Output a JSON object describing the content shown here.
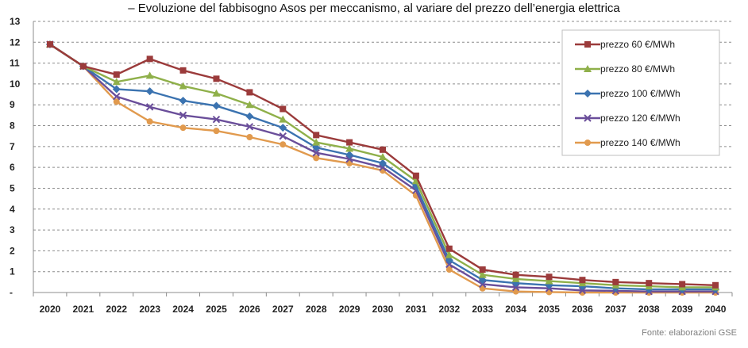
{
  "chart_data": {
    "type": "line",
    "title": "– Evoluzione del fabbisogno Asos per meccanismo, al variare del prezzo dell’energia elettrica",
    "xlabel": "",
    "ylabel": "",
    "x": [
      "2020",
      "2021",
      "2022",
      "2023",
      "2024",
      "2025",
      "2026",
      "2027",
      "2028",
      "2029",
      "2030",
      "2031",
      "2032",
      "2033",
      "2034",
      "2035",
      "2036",
      "2037",
      "2038",
      "2039",
      "2040"
    ],
    "y_ticks": [
      "-",
      "1",
      "2",
      "3",
      "4",
      "5",
      "6",
      "7",
      "8",
      "9",
      "10",
      "11",
      "12",
      "13"
    ],
    "ylim": [
      0,
      13
    ],
    "grid": "horizontal-dashed",
    "legend_position": "top-right",
    "series": [
      {
        "name": "prezzo 60 €/MWh",
        "color": "#9b3b3b",
        "marker": "square",
        "values": [
          11.9,
          10.85,
          10.45,
          11.2,
          10.65,
          10.25,
          9.6,
          8.8,
          7.55,
          7.2,
          6.85,
          5.6,
          2.1,
          1.1,
          0.85,
          0.75,
          0.6,
          0.5,
          0.45,
          0.4,
          0.35
        ]
      },
      {
        "name": "prezzo 80 €/MWh",
        "color": "#8fb04a",
        "marker": "triangle",
        "values": [
          11.9,
          10.85,
          10.1,
          10.4,
          9.9,
          9.55,
          9.0,
          8.3,
          7.2,
          6.9,
          6.5,
          5.35,
          1.8,
          0.85,
          0.65,
          0.55,
          0.45,
          0.35,
          0.3,
          0.25,
          0.25
        ]
      },
      {
        "name": "prezzo 100 €/MWh",
        "color": "#3b73b0",
        "marker": "diamond",
        "values": [
          11.9,
          10.85,
          9.75,
          9.65,
          9.2,
          8.95,
          8.45,
          7.9,
          6.95,
          6.6,
          6.2,
          5.1,
          1.55,
          0.6,
          0.45,
          0.35,
          0.3,
          0.2,
          0.15,
          0.15,
          0.15
        ]
      },
      {
        "name": "prezzo 120 €/MWh",
        "color": "#6a4e9a",
        "marker": "x",
        "values": [
          11.9,
          10.85,
          9.4,
          8.9,
          8.5,
          8.3,
          7.95,
          7.5,
          6.7,
          6.4,
          6.0,
          4.9,
          1.35,
          0.4,
          0.25,
          0.2,
          0.1,
          0.08,
          0.05,
          0.05,
          0.05
        ]
      },
      {
        "name": "prezzo 140 €/MWh",
        "color": "#e19a4e",
        "marker": "circle",
        "values": [
          11.9,
          10.85,
          9.15,
          8.2,
          7.9,
          7.75,
          7.45,
          7.1,
          6.45,
          6.2,
          5.85,
          4.65,
          1.1,
          0.2,
          0.05,
          0.02,
          0.0,
          0.0,
          0.0,
          0.0,
          0.0
        ]
      }
    ]
  },
  "source_note": "Fonte: elaborazioni GSE"
}
